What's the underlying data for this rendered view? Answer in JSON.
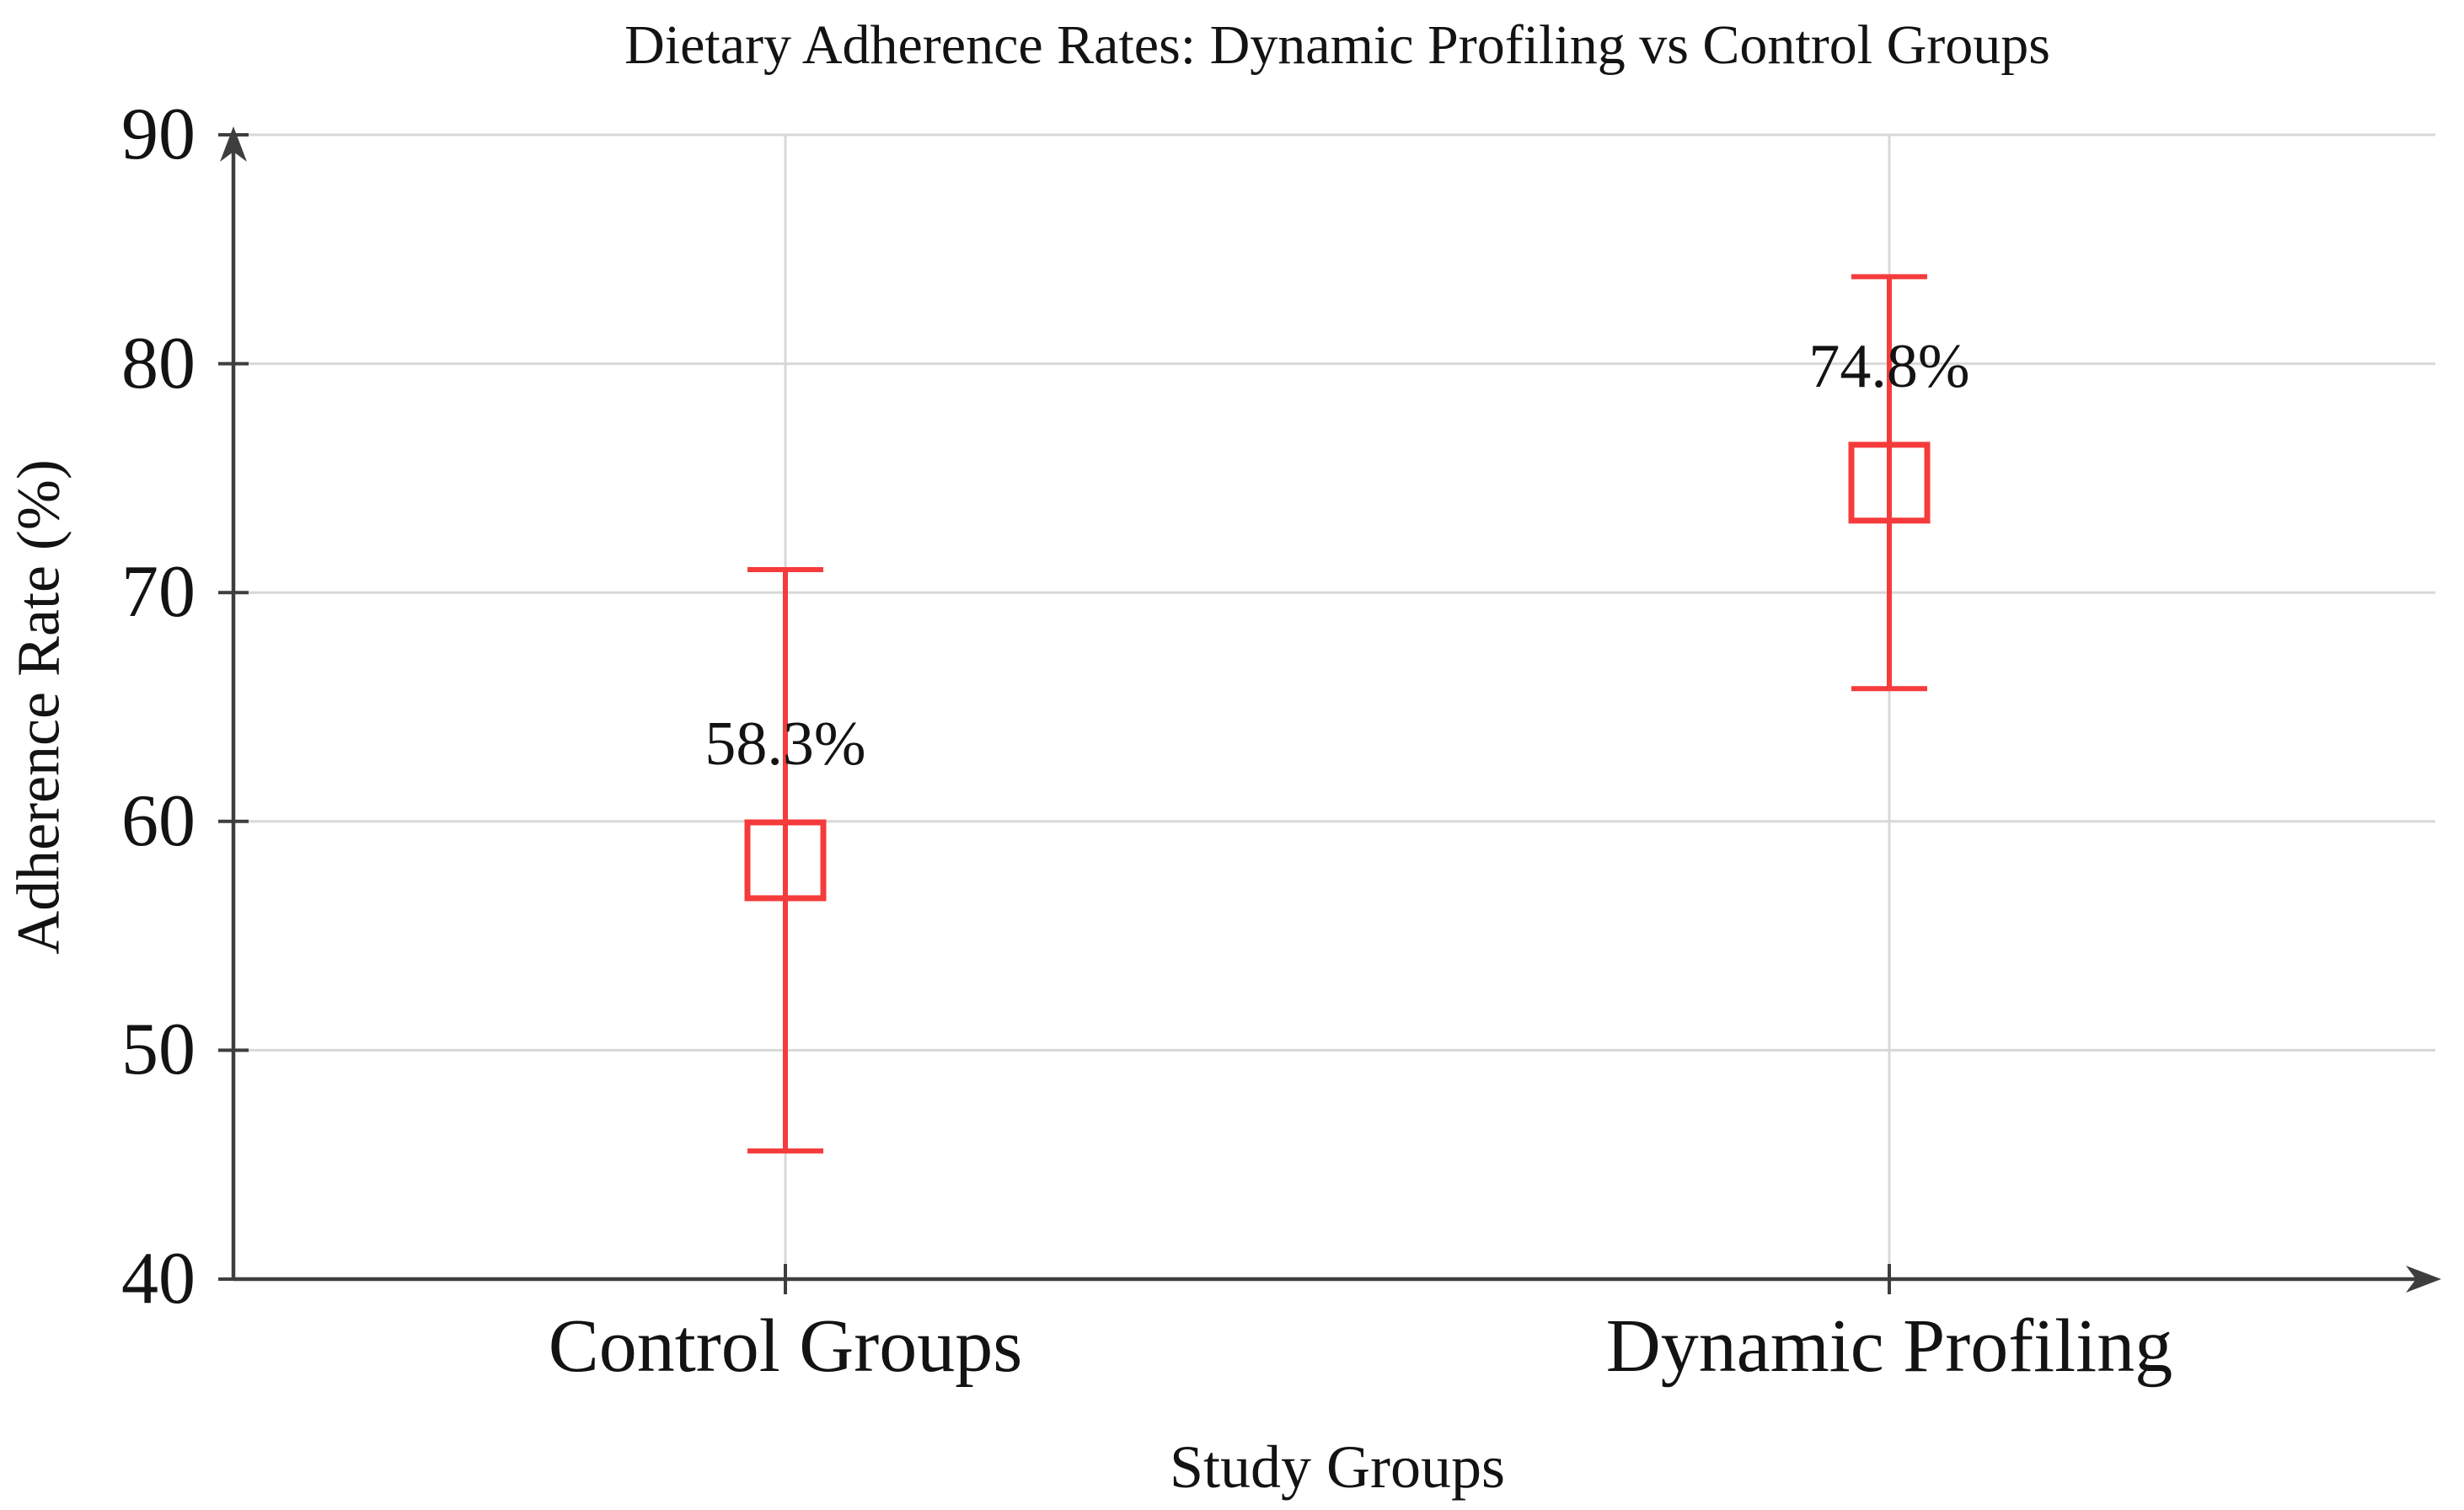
{
  "chart_data": {
    "type": "scatter",
    "title": "Dietary Adherence Rates: Dynamic Profiling vs Control Groups",
    "xlabel": "Study Groups",
    "ylabel": "Adherence Rate (%)",
    "categories": [
      "Control Groups",
      "Dynamic Profiling"
    ],
    "values": [
      58.3,
      74.8
    ],
    "error_bars": [
      12.7,
      9.0
    ],
    "value_labels": [
      "58.3%",
      "74.8%"
    ],
    "ylim": [
      40,
      90
    ],
    "yticks": [
      40,
      50,
      60,
      70,
      80,
      90
    ],
    "grid": true,
    "legend": false,
    "marker": "open-square"
  },
  "colors": {
    "marker_red": "#f53b3b",
    "grid_gray": "#d8d8d8",
    "axis_dark": "#3e3e3e",
    "text_black": "#131313"
  }
}
